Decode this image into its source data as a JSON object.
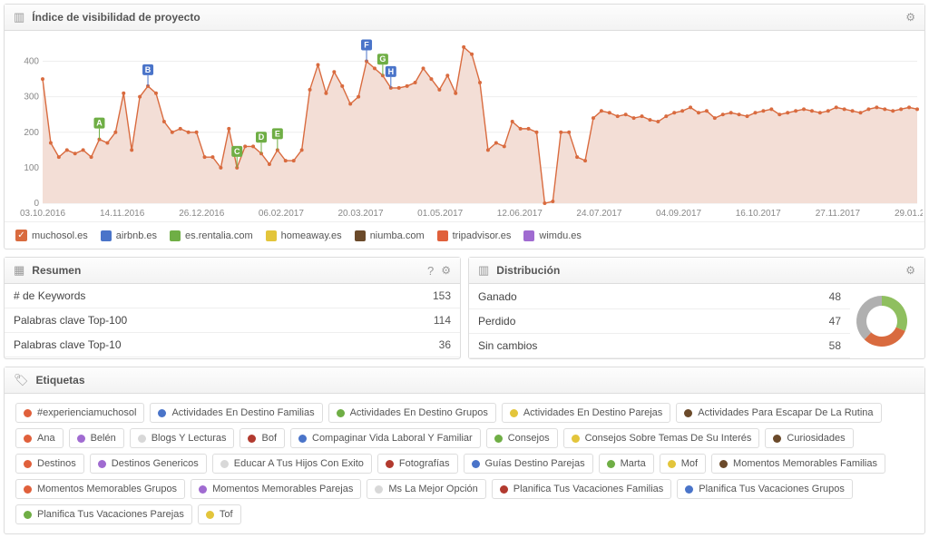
{
  "main_chart": {
    "title": "Índice de visibilidad de proyecto",
    "type": "area-line",
    "ylim": [
      0,
      450
    ],
    "yticks": [
      0,
      100,
      200,
      300,
      400
    ],
    "x_labels": [
      "03.10.2016",
      "14.11.2016",
      "26.12.2016",
      "06.02.2017",
      "20.03.2017",
      "01.05.2017",
      "12.06.2017",
      "24.07.2017",
      "04.09.2017",
      "16.10.2017",
      "27.11.2017",
      "29.01.2018"
    ],
    "line_color": "#d96b3f",
    "fill_color": "#f3ded6",
    "grid_color": "#eeeeee",
    "series": [
      350,
      170,
      130,
      150,
      140,
      150,
      130,
      180,
      170,
      200,
      310,
      150,
      300,
      330,
      310,
      230,
      200,
      210,
      200,
      200,
      130,
      130,
      100,
      210,
      100,
      160,
      160,
      140,
      110,
      150,
      120,
      120,
      150,
      320,
      390,
      310,
      370,
      330,
      280,
      300,
      400,
      380,
      360,
      325,
      325,
      330,
      340,
      380,
      350,
      320,
      360,
      310,
      440,
      420,
      340,
      150,
      170,
      160,
      230,
      210,
      210,
      200,
      0,
      5,
      200,
      200,
      130,
      120,
      240,
      260,
      255,
      245,
      250,
      240,
      245,
      235,
      230,
      245,
      255,
      260,
      270,
      255,
      260,
      240,
      250,
      255,
      250,
      245,
      255,
      260,
      265,
      250,
      255,
      260,
      265,
      260,
      255,
      260,
      270,
      265,
      260,
      255,
      265,
      270,
      265,
      260,
      265,
      270,
      265
    ],
    "markers": [
      {
        "label": "A",
        "idx": 7,
        "color": "#6fae45"
      },
      {
        "label": "B",
        "idx": 13,
        "color": "#4a74c9"
      },
      {
        "label": "C",
        "idx": 24,
        "color": "#6fae45"
      },
      {
        "label": "D",
        "idx": 27,
        "color": "#6fae45"
      },
      {
        "label": "E",
        "idx": 29,
        "color": "#6fae45"
      },
      {
        "label": "F",
        "idx": 40,
        "color": "#4a74c9"
      },
      {
        "label": "G",
        "idx": 42,
        "color": "#6fae45"
      },
      {
        "label": "H",
        "idx": 43,
        "color": "#4a74c9"
      }
    ],
    "legend": [
      {
        "label": "muchosol.es",
        "color": "#d96b3f",
        "checked": true
      },
      {
        "label": "airbnb.es",
        "color": "#4a74c9",
        "checked": false
      },
      {
        "label": "es.rentalia.com",
        "color": "#6fae45",
        "checked": false
      },
      {
        "label": "homeaway.es",
        "color": "#e3c53b",
        "checked": false
      },
      {
        "label": "niumba.com",
        "color": "#6b4a2a",
        "checked": false
      },
      {
        "label": "tripadvisor.es",
        "color": "#e0603b",
        "checked": false
      },
      {
        "label": "wimdu.es",
        "color": "#a06bd1",
        "checked": false
      }
    ]
  },
  "resumen": {
    "title": "Resumen",
    "rows": [
      {
        "label": "# de Keywords",
        "value": "153"
      },
      {
        "label": "Palabras clave Top-100",
        "value": "114"
      },
      {
        "label": "Palabras clave Top-10",
        "value": "36"
      }
    ]
  },
  "distribucion": {
    "title": "Distribución",
    "rows": [
      {
        "label": "Ganado",
        "value": "48",
        "cls": "num-green",
        "color": "#8fbf5f"
      },
      {
        "label": "Perdido",
        "value": "47",
        "cls": "num-red",
        "color": "#d96b3f"
      },
      {
        "label": "Sin cambios",
        "value": "58",
        "cls": "num-grey",
        "color": "#b0b0b0"
      }
    ]
  },
  "etiquetas": {
    "title": "Etiquetas",
    "tags": [
      {
        "label": "#experienciamuchosol",
        "color": "#e0603b"
      },
      {
        "label": "Actividades En Destino Familias",
        "color": "#4a74c9"
      },
      {
        "label": "Actividades En Destino Grupos",
        "color": "#6fae45"
      },
      {
        "label": "Actividades En Destino Parejas",
        "color": "#e3c53b"
      },
      {
        "label": "Actividades Para Escapar De La Rutina",
        "color": "#6b4a2a"
      },
      {
        "label": "Ana",
        "color": "#e0603b"
      },
      {
        "label": "Belén",
        "color": "#a06bd1"
      },
      {
        "label": "Blogs Y Lecturas",
        "color": "#d8d8d8"
      },
      {
        "label": "Bof",
        "color": "#b23a2f"
      },
      {
        "label": "Compaginar Vida Laboral Y Familiar",
        "color": "#4a74c9"
      },
      {
        "label": "Consejos",
        "color": "#6fae45"
      },
      {
        "label": "Consejos Sobre Temas De Su Interés",
        "color": "#e3c53b"
      },
      {
        "label": "Curiosidades",
        "color": "#6b4a2a"
      },
      {
        "label": "Destinos",
        "color": "#e0603b"
      },
      {
        "label": "Destinos Genericos",
        "color": "#a06bd1"
      },
      {
        "label": "Educar A Tus Hijos Con Exito",
        "color": "#d8d8d8"
      },
      {
        "label": "Fotografías",
        "color": "#b23a2f"
      },
      {
        "label": "Guías Destino Parejas",
        "color": "#4a74c9"
      },
      {
        "label": "Marta",
        "color": "#6fae45"
      },
      {
        "label": "Mof",
        "color": "#e3c53b"
      },
      {
        "label": "Momentos Memorables Familias",
        "color": "#6b4a2a"
      },
      {
        "label": "Momentos Memorables Grupos",
        "color": "#e0603b"
      },
      {
        "label": "Momentos Memorables Parejas",
        "color": "#a06bd1"
      },
      {
        "label": "Ms La Mejor Opción",
        "color": "#d8d8d8"
      },
      {
        "label": "Planifica Tus Vacaciones Familias",
        "color": "#b23a2f"
      },
      {
        "label": "Planifica Tus Vacaciones Grupos",
        "color": "#4a74c9"
      },
      {
        "label": "Planifica Tus Vacaciones Parejas",
        "color": "#6fae45"
      },
      {
        "label": "Tof",
        "color": "#e3c53b"
      }
    ]
  }
}
